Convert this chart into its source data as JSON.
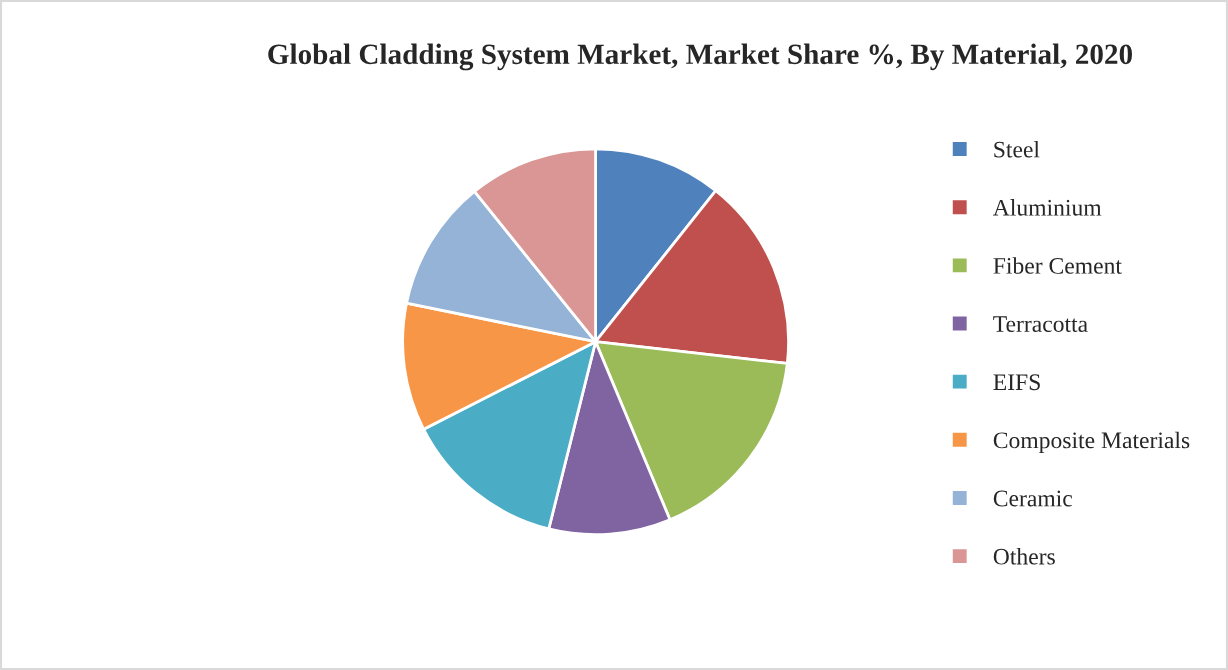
{
  "chart_data": {
    "type": "pie",
    "title": "Global Cladding System Market, Market Share %, By Material, 2020",
    "categories": [
      "Steel",
      "Aluminium",
      "Fiber Cement",
      "Terracotta",
      "EIFS",
      "Composite Materials",
      "Ceramic",
      "Others"
    ],
    "values": [
      10.7,
      16.1,
      16.9,
      10.2,
      13.6,
      10.7,
      11.0,
      10.8
    ],
    "colors": [
      "#4f81bd",
      "#c0504d",
      "#9bbb59",
      "#8064a2",
      "#4bacc6",
      "#f79646",
      "#95b3d7",
      "#d99694"
    ],
    "legend": "right"
  }
}
